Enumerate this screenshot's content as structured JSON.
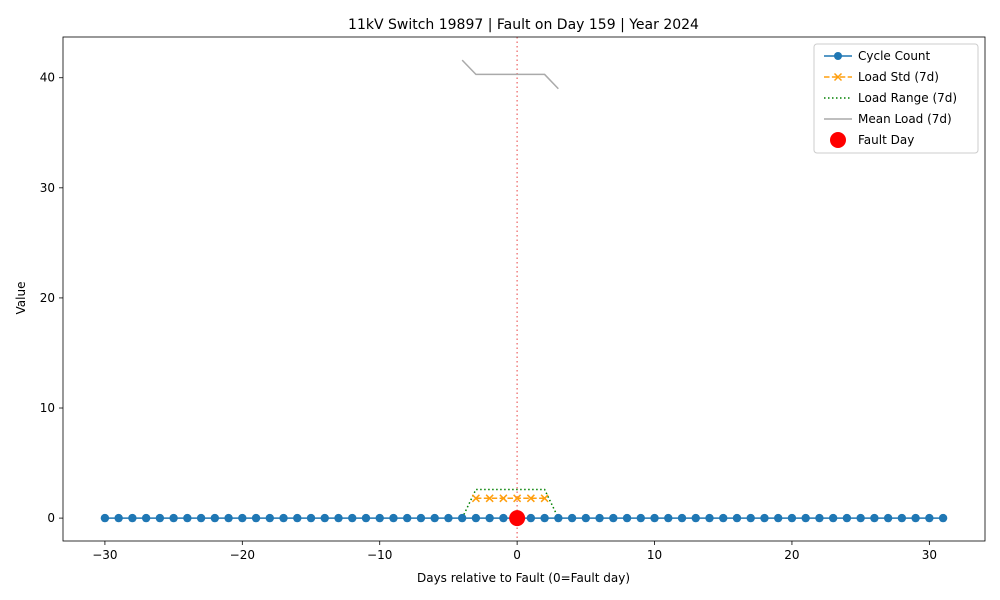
{
  "chart_data": {
    "type": "line",
    "title": "11kV Switch 19897 | Fault on Day 159 | Year 2024",
    "xlabel": "Days relative to Fault (0=Fault day)",
    "ylabel": "Value",
    "xlim": [
      -33.05,
      34.05
    ],
    "ylim": [
      -2.08,
      43.7
    ],
    "x_ticks": [
      -30,
      -20,
      -10,
      0,
      10,
      20,
      30
    ],
    "y_ticks": [
      0,
      10,
      20,
      30,
      40
    ],
    "grid": false,
    "legend_position": "top-right",
    "fault_line_x": 0,
    "series": [
      {
        "name": "Cycle Count",
        "style": "solid-circle",
        "color": "#1f77b4",
        "x": [
          -30,
          -29,
          -28,
          -27,
          -26,
          -25,
          -24,
          -23,
          -22,
          -21,
          -20,
          -19,
          -18,
          -17,
          -16,
          -15,
          -14,
          -13,
          -12,
          -11,
          -10,
          -9,
          -8,
          -7,
          -6,
          -5,
          -4,
          -3,
          -2,
          -1,
          0,
          1,
          2,
          3,
          4,
          5,
          6,
          7,
          8,
          9,
          10,
          11,
          12,
          13,
          14,
          15,
          16,
          17,
          18,
          19,
          20,
          21,
          22,
          23,
          24,
          25,
          26,
          27,
          28,
          29,
          30,
          31
        ],
        "y": [
          0,
          0,
          0,
          0,
          0,
          0,
          0,
          0,
          0,
          0,
          0,
          0,
          0,
          0,
          0,
          0,
          0,
          0,
          0,
          0,
          0,
          0,
          0,
          0,
          0,
          0,
          0,
          0,
          0,
          0,
          0,
          0,
          0,
          0,
          0,
          0,
          0,
          0,
          0,
          0,
          0,
          0,
          0,
          0,
          0,
          0,
          0,
          0,
          0,
          0,
          0,
          0,
          0,
          0,
          0,
          0,
          0,
          0,
          0,
          0,
          0,
          0
        ]
      },
      {
        "name": "Load Std (7d)",
        "style": "dashed-x",
        "color": "#ff9f0e",
        "x": [
          -3,
          -2,
          -1,
          0,
          1,
          2
        ],
        "y": [
          1.8,
          1.8,
          1.8,
          1.8,
          1.8,
          1.8
        ]
      },
      {
        "name": "Load Range (7d)",
        "style": "dotted",
        "color": "#008000",
        "x": [
          -4,
          -3,
          -2,
          -1,
          0,
          1,
          2,
          3
        ],
        "y": [
          0,
          2.6,
          2.6,
          2.6,
          2.6,
          2.6,
          2.6,
          0
        ]
      },
      {
        "name": "Mean Load (7d)",
        "style": "solid-gray",
        "color": "#aaaaaa",
        "x": [
          -4,
          -3,
          -2,
          -1,
          0,
          1,
          2,
          3
        ],
        "y": [
          41.6,
          40.3,
          40.3,
          40.3,
          40.3,
          40.3,
          40.3,
          39.0
        ]
      },
      {
        "name": "Fault Day",
        "style": "marker-big",
        "color": "#ff0000",
        "x": [
          0
        ],
        "y": [
          0
        ]
      }
    ]
  }
}
